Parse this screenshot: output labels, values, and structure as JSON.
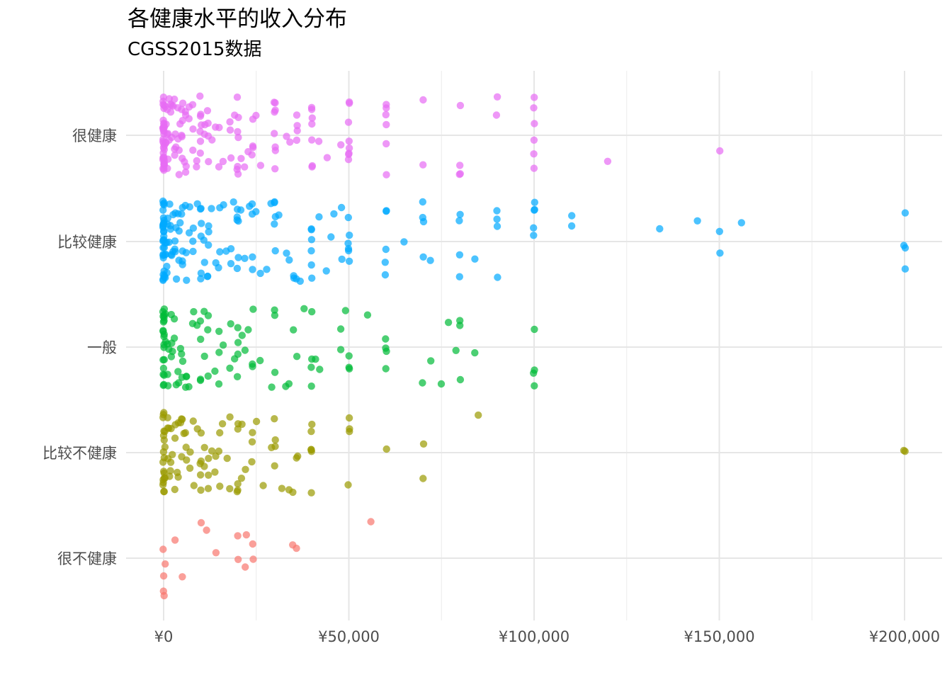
{
  "chart_data": {
    "type": "scatter",
    "title": "各健康水平的收入分布",
    "subtitle": "CGSS2015数据",
    "xlabel": "",
    "ylabel": "",
    "xlim": [
      -10000,
      210000
    ],
    "x_ticks": [
      0,
      50000,
      100000,
      150000,
      200000
    ],
    "x_tick_labels": [
      "¥0",
      "¥50,000",
      "¥100,000",
      "¥150,000",
      "¥200,000"
    ],
    "categories": [
      "很不健康",
      "比较不健康",
      "一般",
      "比较健康",
      "很健康"
    ],
    "grid": true,
    "legend": "none",
    "jitter": "vertical within category band",
    "series": [
      {
        "category": "很不健康",
        "color": "#F8766D",
        "x": [
          0,
          0,
          0,
          0,
          500,
          3000,
          5000,
          10000,
          11500,
          14000,
          20000,
          20000,
          22000,
          22500,
          24000,
          24000,
          35000,
          36000,
          56000
        ]
      },
      {
        "category": "比较不健康",
        "color": "#9A9A00",
        "x": [
          0,
          0,
          0,
          0,
          0,
          0,
          0,
          0,
          0,
          0,
          0,
          0,
          0,
          0,
          0,
          0,
          0,
          500,
          500,
          500,
          1000,
          1000,
          1000,
          1500,
          1500,
          2000,
          2000,
          2000,
          2500,
          3000,
          3000,
          3000,
          3500,
          4000,
          4000,
          4500,
          5000,
          5000,
          5000,
          5500,
          6000,
          6000,
          6000,
          7000,
          7000,
          8000,
          8000,
          9000,
          10000,
          10000,
          10000,
          10000,
          10000,
          11000,
          11000,
          12000,
          12000,
          12000,
          13000,
          14000,
          14000,
          15000,
          15000,
          15000,
          16000,
          17000,
          18000,
          18000,
          20000,
          20000,
          20000,
          20000,
          20000,
          21000,
          21000,
          22000,
          24000,
          24000,
          24000,
          25000,
          27000,
          29000,
          30000,
          30000,
          30000,
          30000,
          32000,
          34000,
          35000,
          36000,
          36000,
          40000,
          40000,
          40000,
          40000,
          40000,
          40000,
          50000,
          50000,
          50000,
          50000,
          60000,
          70000,
          70000,
          85000,
          200000,
          200000
        ]
      },
      {
        "category": "一般",
        "color": "#00BA38",
        "x": [
          0,
          0,
          0,
          0,
          0,
          0,
          0,
          0,
          0,
          0,
          0,
          0,
          0,
          0,
          0,
          0,
          0,
          0,
          0,
          0,
          500,
          500,
          1000,
          1000,
          1000,
          1500,
          2000,
          2000,
          2000,
          2500,
          3000,
          3000,
          3500,
          4000,
          4000,
          4500,
          5000,
          5000,
          5000,
          6000,
          6000,
          6000,
          7000,
          8000,
          8000,
          9000,
          10000,
          10000,
          10000,
          10000,
          11000,
          11000,
          12000,
          12000,
          12000,
          14000,
          15000,
          15000,
          15000,
          16000,
          18000,
          18000,
          19000,
          20000,
          20000,
          20000,
          20000,
          21000,
          22000,
          23000,
          24000,
          24000,
          24000,
          26000,
          29000,
          30000,
          30000,
          30000,
          33000,
          34000,
          35000,
          36000,
          38000,
          40000,
          40000,
          40000,
          40000,
          41000,
          42000,
          48000,
          48000,
          49000,
          50000,
          50000,
          50000,
          55000,
          60000,
          60000,
          60000,
          60000,
          70000,
          72000,
          75000,
          77000,
          79000,
          80000,
          80000,
          80000,
          84000,
          100000,
          100000,
          100000,
          100000
        ]
      },
      {
        "category": "比较健康",
        "color": "#00A9FF",
        "x": [
          0,
          0,
          0,
          0,
          0,
          0,
          0,
          0,
          0,
          0,
          0,
          0,
          0,
          0,
          0,
          0,
          0,
          0,
          0,
          0,
          0,
          0,
          0,
          0,
          0,
          0,
          0,
          0,
          0,
          0,
          500,
          500,
          500,
          500,
          1000,
          1000,
          1000,
          1000,
          1000,
          1500,
          1500,
          2000,
          2000,
          2000,
          2000,
          2500,
          2500,
          3000,
          3000,
          3000,
          3000,
          3500,
          3500,
          4000,
          4000,
          4000,
          4500,
          5000,
          5000,
          5000,
          5000,
          5000,
          6000,
          6000,
          6000,
          7000,
          7000,
          8000,
          8000,
          8000,
          9000,
          10000,
          10000,
          10000,
          10000,
          10000,
          10000,
          11000,
          11000,
          12000,
          12000,
          12000,
          12000,
          12000,
          13000,
          14000,
          15000,
          15000,
          15000,
          16000,
          17000,
          18000,
          18000,
          19000,
          20000,
          20000,
          20000,
          20000,
          20000,
          20000,
          21000,
          22000,
          23000,
          24000,
          24000,
          24000,
          24000,
          25000,
          26000,
          28000,
          29000,
          30000,
          30000,
          30000,
          30000,
          30000,
          31000,
          33000,
          34000,
          35000,
          35000,
          36000,
          37000,
          40000,
          40000,
          40000,
          40000,
          40000,
          40000,
          42000,
          44000,
          45000,
          46000,
          48000,
          48000,
          50000,
          50000,
          50000,
          50000,
          50000,
          50000,
          60000,
          60000,
          60000,
          60000,
          60000,
          65000,
          70000,
          70000,
          70000,
          70000,
          72000,
          80000,
          80000,
          80000,
          80000,
          84000,
          90000,
          90000,
          90000,
          90000,
          100000,
          100000,
          100000,
          100000,
          100000,
          110000,
          110000,
          134000,
          144000,
          150000,
          150000,
          156000,
          200000,
          200000,
          200000,
          200000
        ]
      },
      {
        "category": "很健康",
        "color": "#E76BF3",
        "x": [
          0,
          0,
          0,
          0,
          0,
          0,
          0,
          0,
          0,
          0,
          0,
          0,
          0,
          0,
          0,
          0,
          0,
          0,
          0,
          0,
          0,
          0,
          0,
          0,
          0,
          0,
          0,
          0,
          0,
          0,
          0,
          0,
          0,
          0,
          500,
          500,
          500,
          500,
          1000,
          1000,
          1000,
          1000,
          1000,
          1500,
          1500,
          2000,
          2000,
          2000,
          2000,
          2500,
          3000,
          3000,
          3000,
          3000,
          3500,
          4000,
          4000,
          4000,
          4000,
          4500,
          5000,
          5000,
          5000,
          5000,
          5000,
          5000,
          5500,
          6000,
          6000,
          6000,
          6000,
          7000,
          7000,
          8000,
          8000,
          8000,
          9000,
          9000,
          10000,
          10000,
          10000,
          10000,
          10000,
          10000,
          10000,
          11000,
          11000,
          12000,
          12000,
          12000,
          12000,
          13000,
          14000,
          15000,
          15000,
          16000,
          18000,
          18000,
          18000,
          19000,
          20000,
          20000,
          20000,
          20000,
          20000,
          20000,
          20000,
          21000,
          22000,
          23000,
          24000,
          24000,
          24000,
          24000,
          25000,
          26000,
          30000,
          30000,
          30000,
          30000,
          30000,
          30000,
          30000,
          30000,
          33000,
          34000,
          36000,
          36000,
          36000,
          36000,
          40000,
          40000,
          40000,
          40000,
          40000,
          40000,
          40000,
          42000,
          44000,
          48000,
          50000,
          50000,
          50000,
          50000,
          50000,
          50000,
          50000,
          50000,
          60000,
          60000,
          60000,
          60000,
          60000,
          60000,
          70000,
          70000,
          80000,
          80000,
          80000,
          80000,
          90000,
          90000,
          100000,
          100000,
          100000,
          100000,
          100000,
          100000,
          120000,
          150000
        ]
      }
    ]
  }
}
